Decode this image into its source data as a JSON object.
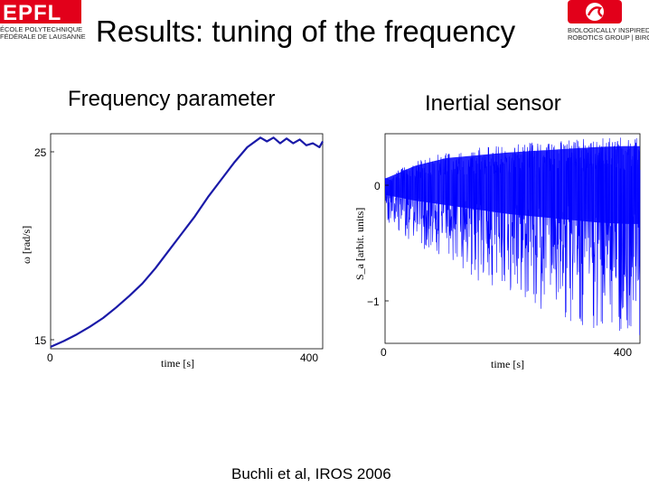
{
  "slide": {
    "title": "Results: tuning of the frequency",
    "citation": "Buchli et al, IROS 2006"
  },
  "logos": {
    "left": {
      "name": "EPFL",
      "lines": [
        "ÉCOLE POLYTECHNIQUE",
        "FÉDÉRALE DE LAUSANNE"
      ],
      "color": "#e2001a"
    },
    "right": {
      "name": "BIOROB",
      "lines": [
        "BIOLOGICALLY INSPIRED",
        "ROBOTICS GROUP | BIRG"
      ],
      "color": "#e2001a"
    }
  },
  "chart_data": [
    {
      "type": "line",
      "title": "Frequency parameter",
      "xlabel": "time [s]",
      "ylabel": "ω [rad/s]",
      "xlim": [
        0,
        415
      ],
      "ylim": [
        14.9,
        26.1
      ],
      "xticks": [
        "0",
        "400"
      ],
      "yticks": [
        "15",
        "25"
      ],
      "color": "#1a1aa8",
      "x": [
        0,
        20,
        40,
        60,
        80,
        100,
        120,
        140,
        160,
        180,
        200,
        220,
        240,
        260,
        280,
        300,
        320,
        330,
        340,
        350,
        360,
        370,
        380,
        390,
        400,
        410,
        415
      ],
      "y": [
        15.0,
        15.3,
        15.65,
        16.05,
        16.5,
        17.05,
        17.65,
        18.3,
        19.1,
        20.0,
        20.9,
        21.8,
        22.8,
        23.7,
        24.6,
        25.4,
        25.9,
        25.7,
        25.9,
        25.6,
        25.85,
        25.6,
        25.8,
        25.5,
        25.6,
        25.4,
        25.7
      ],
      "grid": false
    },
    {
      "type": "line",
      "title": "Inertial sensor",
      "xlabel": "time [s]",
      "ylabel": "S_a [arbit. units]",
      "xlim": [
        0,
        420
      ],
      "ylim": [
        -1.35,
        0.45
      ],
      "xticks": [
        "0",
        "400"
      ],
      "yticks": [
        "0",
        "−1"
      ],
      "color": "#0000ff",
      "description_of_series": "dense noisy oscillation between about -1.35 and 0.4 whose downward excursions grow over time",
      "envelope": {
        "x": [
          0,
          50,
          100,
          150,
          200,
          250,
          300,
          350,
          400,
          420
        ],
        "upper": [
          0.08,
          0.22,
          0.3,
          0.33,
          0.36,
          0.38,
          0.4,
          0.42,
          0.43,
          0.43
        ],
        "lower": [
          -0.3,
          -0.5,
          -0.65,
          -0.8,
          -0.95,
          -1.05,
          -1.15,
          -1.25,
          -1.3,
          -1.3
        ]
      },
      "grid": false
    }
  ]
}
